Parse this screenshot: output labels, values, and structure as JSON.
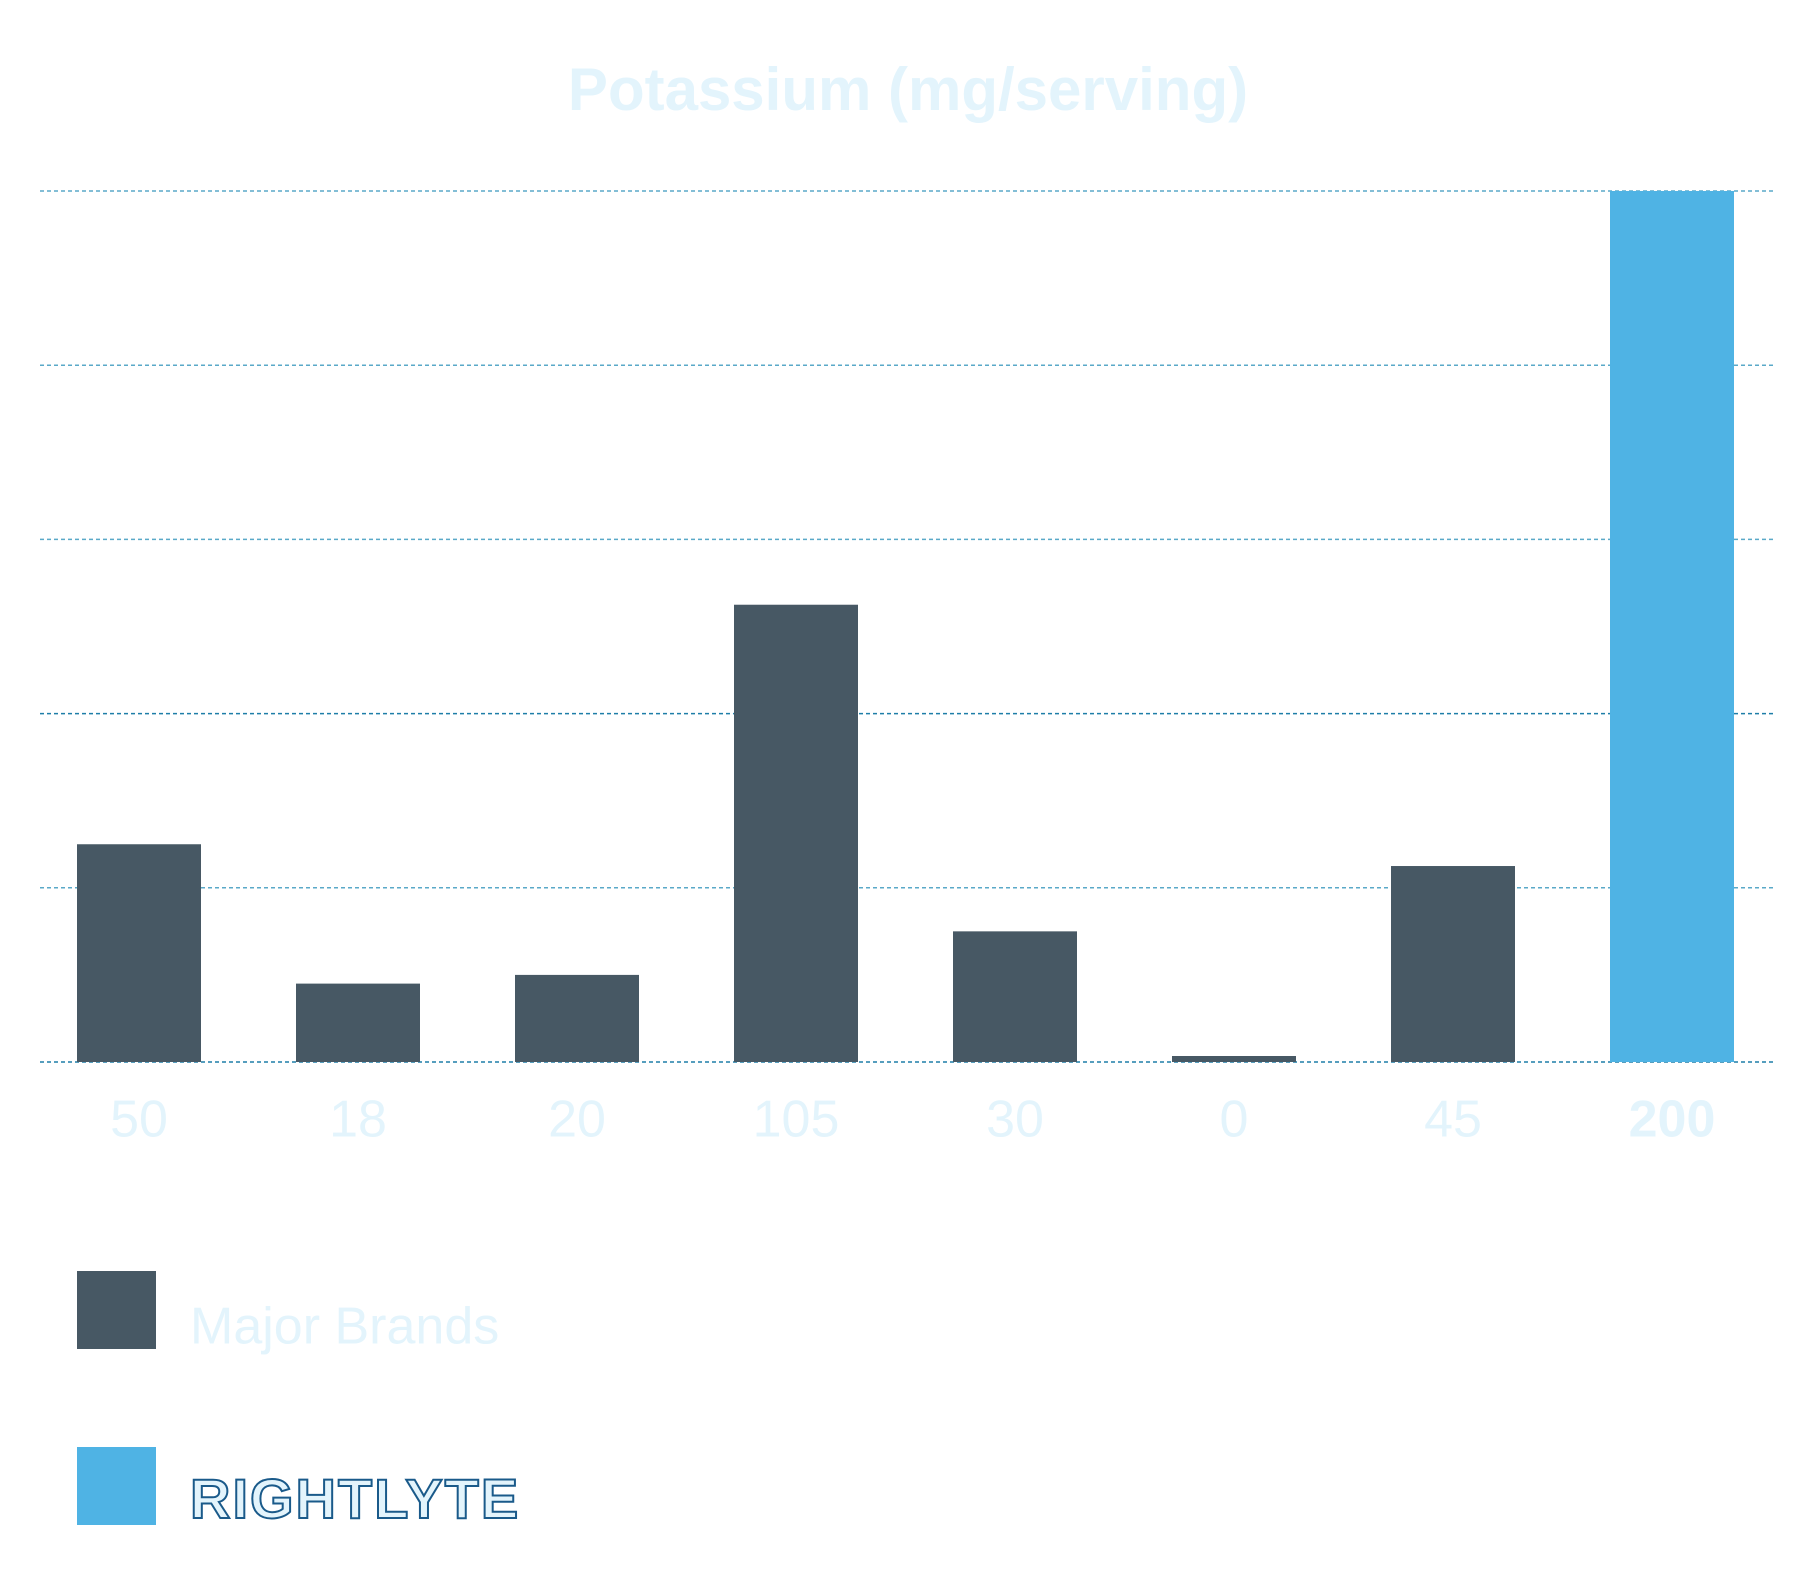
{
  "chart_data": {
    "type": "bar",
    "title": "Potassium (mg/serving)",
    "categories": [
      null,
      null,
      null,
      null,
      null,
      null,
      null,
      null
    ],
    "series": [
      {
        "name": "Major Brands",
        "color": "#475864",
        "values": [
          50,
          18,
          20,
          105,
          30,
          0,
          45,
          null
        ]
      },
      {
        "name": "RIGHTLYTE",
        "color": "#4fb3e4",
        "values": [
          null,
          null,
          null,
          null,
          null,
          null,
          null,
          200
        ]
      }
    ],
    "ylim": [
      0,
      200
    ],
    "yticks": [
      0,
      40,
      80,
      120,
      160,
      200
    ],
    "grid": true
  }
}
